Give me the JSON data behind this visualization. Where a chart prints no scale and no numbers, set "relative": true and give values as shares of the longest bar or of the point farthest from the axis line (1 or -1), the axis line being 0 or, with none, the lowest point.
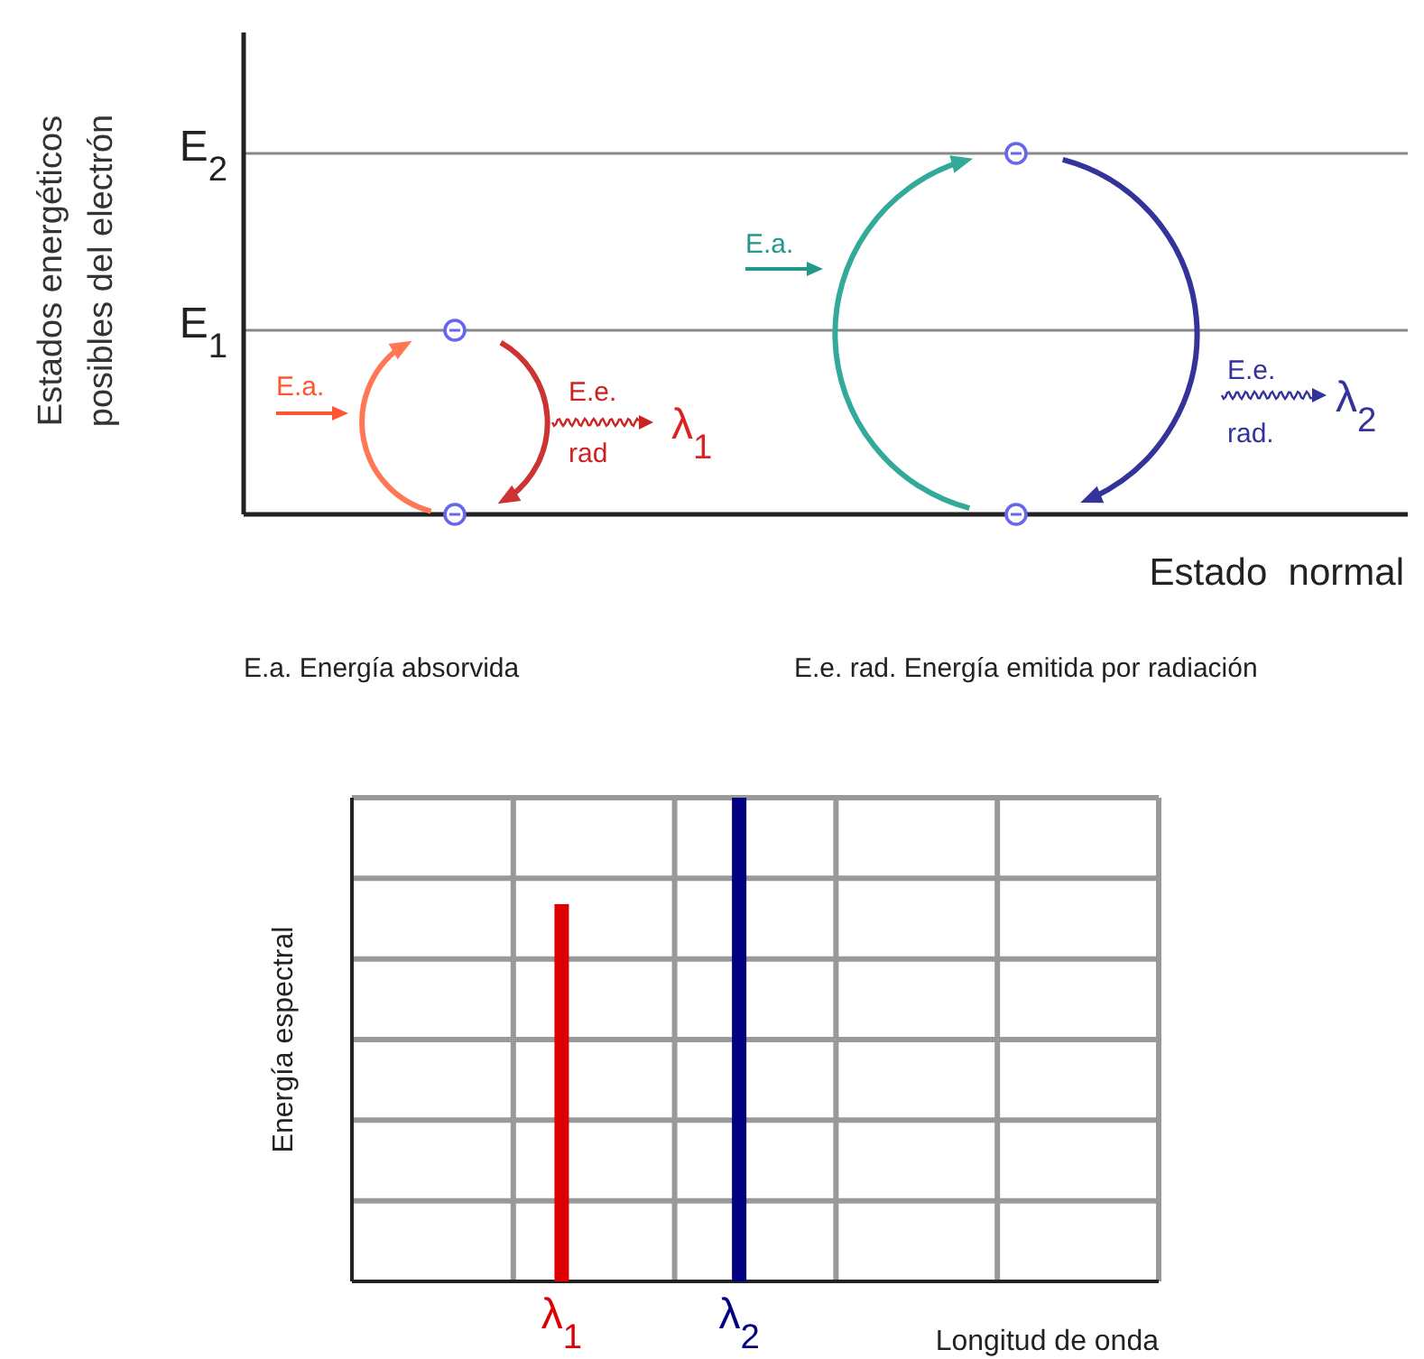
{
  "chart_data": [
    {
      "type": "other",
      "ylabel": "Estados energéticos\nposibles del electrón",
      "xlabel": "Estado  normal",
      "annotations": [
        "E.a.",
        "E.e.",
        "rad",
        "λ$_{1}$",
        "E.a.",
        "E.e.",
        "rad.",
        "λ$_{2}$",
        "E.a. Energía absorvida",
        "E.e. rad. Energía emitida por radiación",
        "E$_{1}$",
        "E$_{2}$"
      ]
    },
    {
      "type": "bar",
      "relative": true,
      "xlabel": "Longitud de onda",
      "ylabel": "Energía espectral",
      "grid": true,
      "categories": [
        "λ$_{1}$",
        "λ$_{2}$"
      ],
      "values": [
        0.78,
        1
      ],
      "colors": [
        "#dd0000",
        "#000080"
      ]
    }
  ]
}
